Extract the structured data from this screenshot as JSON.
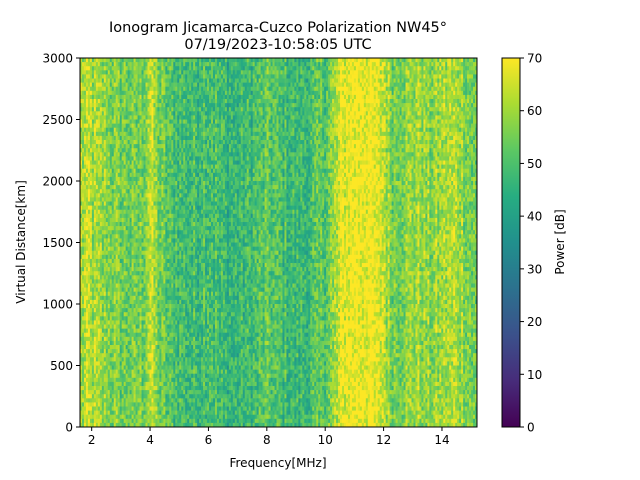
{
  "chart_data": {
    "type": "heatmap",
    "title_line1": "Ionogram Jicamarca-Cuzco Polarization NW45°",
    "title_line2": "07/19/2023-10:58:05 UTC",
    "xlabel": "Frequency[MHz]",
    "ylabel": "Virtual Distance[km]",
    "xlim": [
      1.6,
      15.2
    ],
    "ylim": [
      0,
      3000
    ],
    "xticks": [
      2,
      4,
      6,
      8,
      10,
      12,
      14
    ],
    "yticks": [
      0,
      500,
      1000,
      1500,
      2000,
      2500,
      3000
    ],
    "colorbar": {
      "label": "Power [dB]",
      "range": [
        0,
        70
      ],
      "ticks": [
        0,
        10,
        20,
        30,
        40,
        50,
        60,
        70
      ],
      "colormap": "viridis",
      "colors": [
        "#440154",
        "#472c7a",
        "#3b518b",
        "#2c718e",
        "#21908d",
        "#27ad81",
        "#5cc863",
        "#aadc32",
        "#fde725"
      ]
    },
    "band_profile": {
      "description_freq_mhz": [
        1.6,
        1.9,
        2.2,
        2.6,
        3.0,
        3.4,
        3.8,
        4.0,
        4.3,
        4.6,
        5.0,
        5.5,
        6.0,
        6.5,
        7.0,
        7.5,
        8.0,
        8.5,
        9.0,
        9.5,
        10.0,
        10.3,
        10.6,
        11.0,
        11.5,
        12.0,
        12.3,
        12.8,
        13.2,
        13.6,
        14.0,
        14.5,
        15.0,
        15.2
      ],
      "mean_power_db": [
        60,
        62,
        59,
        57,
        55,
        53,
        56,
        64,
        55,
        51,
        49,
        48,
        51,
        47,
        46,
        48,
        52,
        49,
        47,
        48,
        53,
        58,
        68,
        70,
        70,
        64,
        56,
        58,
        60,
        57,
        60,
        62,
        55,
        52
      ]
    }
  }
}
